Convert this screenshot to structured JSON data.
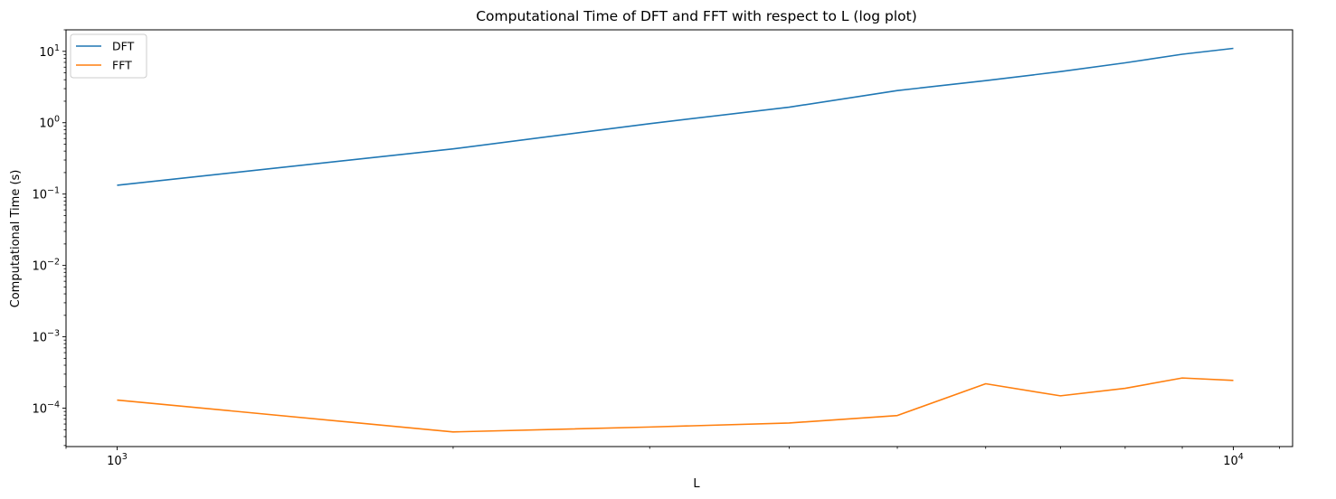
{
  "chart_data": {
    "type": "line",
    "title": "Computational Time of DFT and FFT with respect to L (log plot)",
    "xlabel": "L",
    "ylabel": "Computational Time (s)",
    "xscale": "log",
    "yscale": "log",
    "xlim": [
      900,
      11300
    ],
    "ylim": [
      2.9e-05,
      20
    ],
    "x": [
      1000,
      2000,
      3000,
      4000,
      5000,
      6000,
      7000,
      8000,
      9000,
      10000
    ],
    "series": [
      {
        "name": "DFT",
        "color": "#1f77b4",
        "values": [
          0.133,
          0.43,
          0.97,
          1.65,
          2.82,
          3.88,
          5.2,
          6.9,
          9.1,
          11.0
        ]
      },
      {
        "name": "FFT",
        "color": "#ff7f0e",
        "values": [
          0.00013,
          4.65e-05,
          5.45e-05,
          6.2e-05,
          7.9e-05,
          0.00022,
          0.000149,
          0.00019,
          0.000265,
          0.000245
        ]
      }
    ],
    "x_ticks": [
      {
        "value": 1000,
        "base": "10",
        "exp": "3"
      },
      {
        "value": 10000,
        "base": "10",
        "exp": "4"
      }
    ],
    "y_ticks": [
      {
        "value": 0.0001,
        "base": "10",
        "exp": "−4"
      },
      {
        "value": 0.001,
        "base": "10",
        "exp": "−3"
      },
      {
        "value": 0.01,
        "base": "10",
        "exp": "−2"
      },
      {
        "value": 0.1,
        "base": "10",
        "exp": "−1"
      },
      {
        "value": 1,
        "base": "10",
        "exp": "0"
      },
      {
        "value": 10,
        "base": "10",
        "exp": "1"
      }
    ],
    "grid": false,
    "legend_position": "top-left"
  }
}
